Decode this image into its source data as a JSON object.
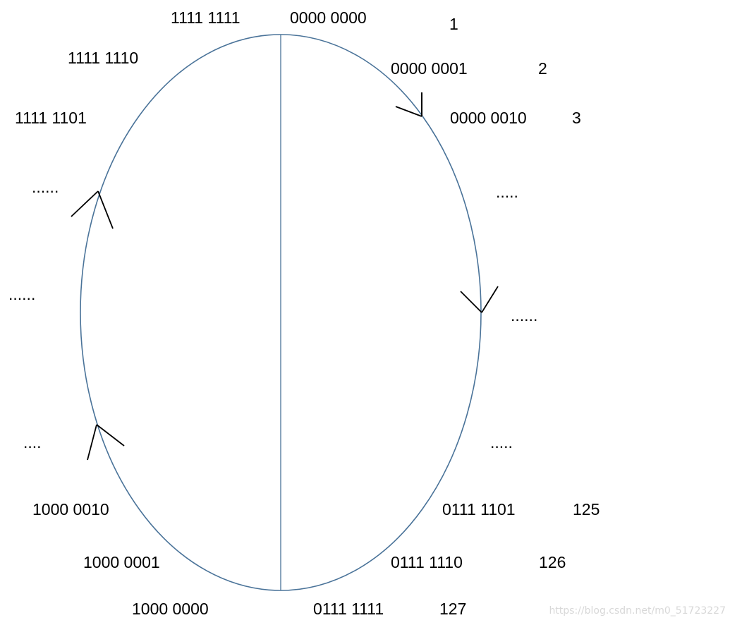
{
  "diagram": {
    "colors": {
      "circle": "#4a7399",
      "arrows": "#000000",
      "text": "#000000",
      "watermark": "#d8d8d8"
    },
    "top": {
      "left_value": "1111 1111",
      "right_value": "0000 0000",
      "right_index": "1"
    },
    "right_side": [
      {
        "value": "0000 0001",
        "index": "2"
      },
      {
        "value": "0000 0010",
        "index": "3"
      },
      {
        "ellipsis": "....."
      },
      {
        "ellipsis": "......"
      },
      {
        "ellipsis": "....."
      },
      {
        "value": "0111 1101",
        "index": "125"
      },
      {
        "value": "0111 1110",
        "index": "126"
      }
    ],
    "bottom": {
      "left_value": "1000 0000",
      "right_value": "0111 1111",
      "right_index": "127"
    },
    "left_side": [
      {
        "value": "1111 1110"
      },
      {
        "value": "1111 1101"
      },
      {
        "ellipsis": "......"
      },
      {
        "ellipsis": "......"
      },
      {
        "ellipsis": "...."
      },
      {
        "value": "1000 0010"
      },
      {
        "value": "1000 0001"
      }
    ],
    "watermark": "https://blog.csdn.net/m0_51723227"
  }
}
